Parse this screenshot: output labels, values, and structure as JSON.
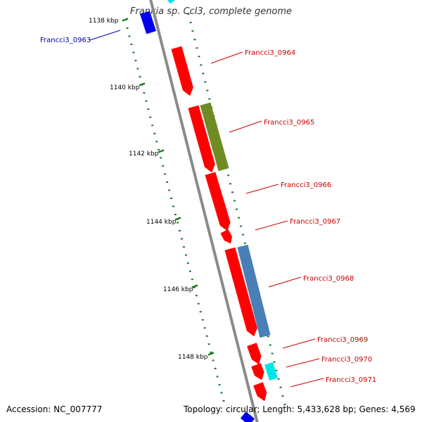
{
  "title": "Frankia sp. CcI3, complete genome",
  "footer": {
    "accession": "Accession: NC_007777",
    "summary": "Topology: circular; Length: 5,433,628 bp; Genes: 4,569"
  },
  "colors": {
    "backbone": "#8a8a8a",
    "tick": "#1a7a1a",
    "gene_red": "#ff0000",
    "gene_blue": "#0000ee",
    "gene_cyan": "#00e5e5",
    "gene_olive": "#6e8c23",
    "gene_steelblue": "#4a7fb5",
    "label_red": "#cc0000",
    "label_blue": "#0000aa"
  },
  "scale_labels": [
    "1138 kbp",
    "1140 kbp",
    "1142 kbp",
    "1144 kbp",
    "1146 kbp",
    "1148 kbp"
  ],
  "gene_labels": [
    {
      "text": "Francci3_0963",
      "color": "label_blue"
    },
    {
      "text": "Francci3_0964",
      "color": "label_red"
    },
    {
      "text": "Francci3_0965",
      "color": "label_red"
    },
    {
      "text": "Francci3_0966",
      "color": "label_red"
    },
    {
      "text": "Francci3_0967",
      "color": "label_red"
    },
    {
      "text": "Francci3_0968",
      "color": "label_red"
    },
    {
      "text": "Francci3_0969",
      "color": "label_red"
    },
    {
      "text": "Francci3_0970",
      "color": "label_red"
    },
    {
      "text": "Francci3_0971",
      "color": "label_red"
    }
  ]
}
